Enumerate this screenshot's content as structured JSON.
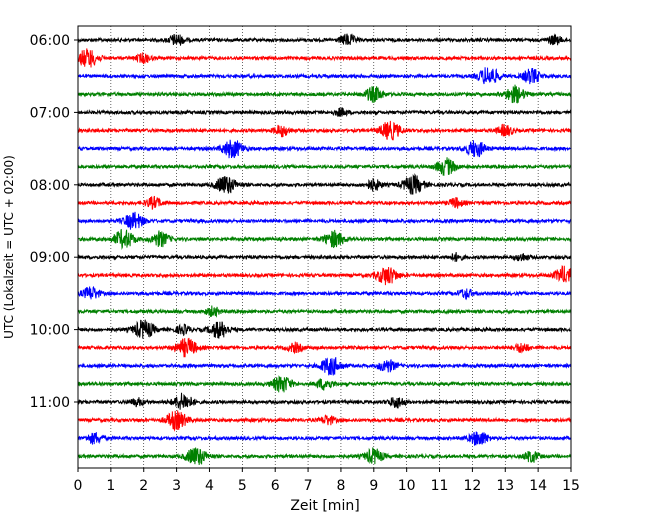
{
  "chart_data": {
    "type": "line",
    "title": "",
    "xlabel": "Zeit  [min]",
    "ylabel": "UTC (Lokalzeit = UTC + 02:00)",
    "xlim": [
      0,
      15
    ],
    "x_ticks": [
      0,
      1,
      2,
      3,
      4,
      5,
      6,
      7,
      8,
      9,
      10,
      11,
      12,
      13,
      14,
      15
    ],
    "x_tick_labels": [
      "0",
      "1",
      "2",
      "3",
      "4",
      "5",
      "6",
      "7",
      "8",
      "9",
      "10",
      "11",
      "12",
      "13",
      "14",
      "15"
    ],
    "y_tick_labels": [
      "06:00",
      "07:00",
      "08:00",
      "09:00",
      "10:00",
      "11:00"
    ],
    "y_tick_trace_index": [
      0,
      4,
      8,
      12,
      16,
      20
    ],
    "grid": "vertical dotted lines at each minute",
    "color_cycle": [
      "#000000",
      "#ff0000",
      "#0000ff",
      "#008000"
    ],
    "trace_minutes": 15,
    "traces": [
      {
        "start": "06:00",
        "color": "#000000",
        "events": [
          [
            3.0,
            0.6
          ],
          [
            8.2,
            0.6
          ],
          [
            14.5,
            0.5
          ]
        ]
      },
      {
        "start": "06:15",
        "color": "#ff0000",
        "events": [
          [
            0.3,
            1.0
          ],
          [
            2.0,
            0.5
          ]
        ]
      },
      {
        "start": "06:30",
        "color": "#0000ff",
        "events": [
          [
            12.5,
            1.0
          ],
          [
            13.8,
            0.8
          ]
        ]
      },
      {
        "start": "06:45",
        "color": "#008000",
        "events": [
          [
            9.0,
            0.8
          ],
          [
            13.3,
            0.9
          ]
        ]
      },
      {
        "start": "07:00",
        "color": "#000000",
        "events": [
          [
            8.0,
            0.4
          ]
        ]
      },
      {
        "start": "07:15",
        "color": "#ff0000",
        "events": [
          [
            6.2,
            0.6
          ],
          [
            9.5,
            1.0
          ],
          [
            13.0,
            0.6
          ]
        ]
      },
      {
        "start": "07:30",
        "color": "#0000ff",
        "events": [
          [
            4.7,
            1.0
          ],
          [
            12.1,
            0.9
          ]
        ]
      },
      {
        "start": "07:45",
        "color": "#008000",
        "events": [
          [
            11.2,
            0.9
          ]
        ]
      },
      {
        "start": "08:00",
        "color": "#000000",
        "events": [
          [
            4.5,
            1.0
          ],
          [
            9.0,
            0.6
          ],
          [
            10.2,
            1.0
          ]
        ]
      },
      {
        "start": "08:15",
        "color": "#ff0000",
        "events": [
          [
            2.3,
            0.6
          ],
          [
            11.5,
            0.5
          ]
        ]
      },
      {
        "start": "08:30",
        "color": "#0000ff",
        "events": [
          [
            1.7,
            0.9
          ]
        ]
      },
      {
        "start": "08:45",
        "color": "#008000",
        "events": [
          [
            1.4,
            1.0
          ],
          [
            2.5,
            0.8
          ],
          [
            7.8,
            0.9
          ]
        ]
      },
      {
        "start": "09:00",
        "color": "#000000",
        "events": [
          [
            11.5,
            0.4
          ],
          [
            13.5,
            0.4
          ]
        ]
      },
      {
        "start": "09:15",
        "color": "#ff0000",
        "events": [
          [
            9.4,
            1.0
          ],
          [
            14.8,
            0.9
          ]
        ]
      },
      {
        "start": "09:30",
        "color": "#0000ff",
        "events": [
          [
            0.4,
            0.7
          ],
          [
            11.8,
            0.5
          ]
        ]
      },
      {
        "start": "09:45",
        "color": "#008000",
        "events": [
          [
            4.1,
            0.5
          ]
        ]
      },
      {
        "start": "10:00",
        "color": "#000000",
        "events": [
          [
            2.0,
            1.0
          ],
          [
            4.3,
            0.9
          ],
          [
            3.2,
            0.5
          ]
        ]
      },
      {
        "start": "10:15",
        "color": "#ff0000",
        "events": [
          [
            3.3,
            1.0
          ],
          [
            6.6,
            0.5
          ],
          [
            13.5,
            0.5
          ]
        ]
      },
      {
        "start": "10:30",
        "color": "#0000ff",
        "events": [
          [
            7.7,
            1.0
          ],
          [
            9.4,
            0.7
          ]
        ]
      },
      {
        "start": "10:45",
        "color": "#008000",
        "events": [
          [
            6.2,
            0.9
          ],
          [
            7.5,
            0.6
          ]
        ]
      },
      {
        "start": "11:00",
        "color": "#000000",
        "events": [
          [
            3.2,
            0.9
          ],
          [
            9.7,
            0.6
          ],
          [
            1.8,
            0.4
          ]
        ]
      },
      {
        "start": "11:15",
        "color": "#ff0000",
        "events": [
          [
            3.0,
            1.0
          ],
          [
            7.6,
            0.5
          ]
        ]
      },
      {
        "start": "11:30",
        "color": "#0000ff",
        "events": [
          [
            0.5,
            0.6
          ],
          [
            12.2,
            0.8
          ]
        ]
      },
      {
        "start": "11:45",
        "color": "#008000",
        "events": [
          [
            3.6,
            1.0
          ],
          [
            9.0,
            0.8
          ],
          [
            13.8,
            0.6
          ]
        ]
      }
    ]
  }
}
